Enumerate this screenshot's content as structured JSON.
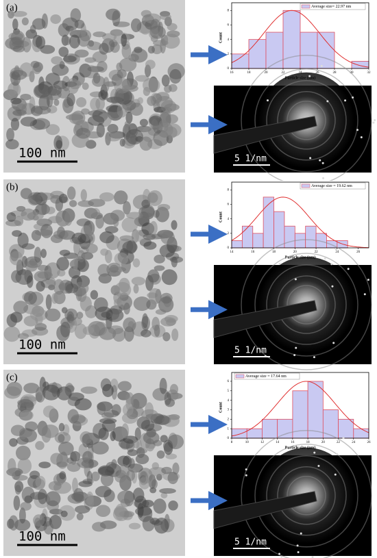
{
  "chart_data": [
    {
      "type": "histogram",
      "legend": "Average size= 22.97 nm",
      "x_label": "Particle size (nm)",
      "y_label": "Count",
      "bins": [
        16,
        18,
        20,
        22,
        24,
        26,
        28,
        30,
        32
      ],
      "values": [
        2,
        4,
        5,
        8,
        5,
        5,
        0,
        1
      ],
      "xlim": [
        16,
        32
      ],
      "xticks": [
        16,
        18,
        20,
        22,
        24,
        26,
        28,
        30,
        32
      ],
      "ylim": [
        0,
        8.5
      ],
      "yticks": [
        0,
        2,
        4,
        6,
        8
      ],
      "color": "#c9c9f2",
      "edge_color": "#e05060",
      "fit_color": "#e03030"
    },
    {
      "type": "histogram",
      "legend": "Average size = 19.62 nm",
      "x_label": "Particle size (nm)",
      "y_label": "Count",
      "bins": [
        14,
        15,
        16,
        17,
        18,
        19,
        20,
        21,
        22,
        23,
        24,
        25
      ],
      "values": [
        1,
        3,
        2,
        7,
        5,
        3,
        2,
        3,
        2,
        1,
        1
      ],
      "xlim": [
        14,
        27
      ],
      "xticks": [
        14,
        16,
        18,
        20,
        22,
        24,
        26
      ],
      "ylim": [
        0,
        8.5
      ],
      "yticks": [
        0,
        2,
        4,
        6,
        8
      ],
      "color": "#c9c9f2",
      "edge_color": "#e05060",
      "fit_color": "#e03030"
    },
    {
      "type": "histogram",
      "legend": "Average size = 17.64 nm",
      "x_label": "Particle size (nm)",
      "y_label": "Count",
      "bins": [
        8,
        10,
        12,
        14,
        16,
        18,
        20,
        22,
        24,
        26
      ],
      "values": [
        1,
        1,
        2,
        2,
        5,
        6,
        3,
        2,
        1
      ],
      "xlim": [
        8,
        26
      ],
      "xticks": [
        8,
        10,
        12,
        14,
        16,
        18,
        20,
        22,
        24,
        26
      ],
      "ylim": [
        0,
        6.5
      ],
      "yticks": [
        0,
        1,
        2,
        3,
        4,
        5,
        6
      ],
      "color": "#c9c9f2",
      "edge_color": "#e05060",
      "fit_color": "#e03030"
    }
  ],
  "panels": [
    {
      "label": "(a)",
      "tem_scale": "100 nm",
      "saed_scale": "5 1/nm"
    },
    {
      "label": "(b)",
      "tem_scale": "100 nm",
      "saed_scale": "5 1/nm"
    },
    {
      "label": "(c)",
      "tem_scale": "100 nm",
      "saed_scale": "5 1/nm"
    }
  ]
}
